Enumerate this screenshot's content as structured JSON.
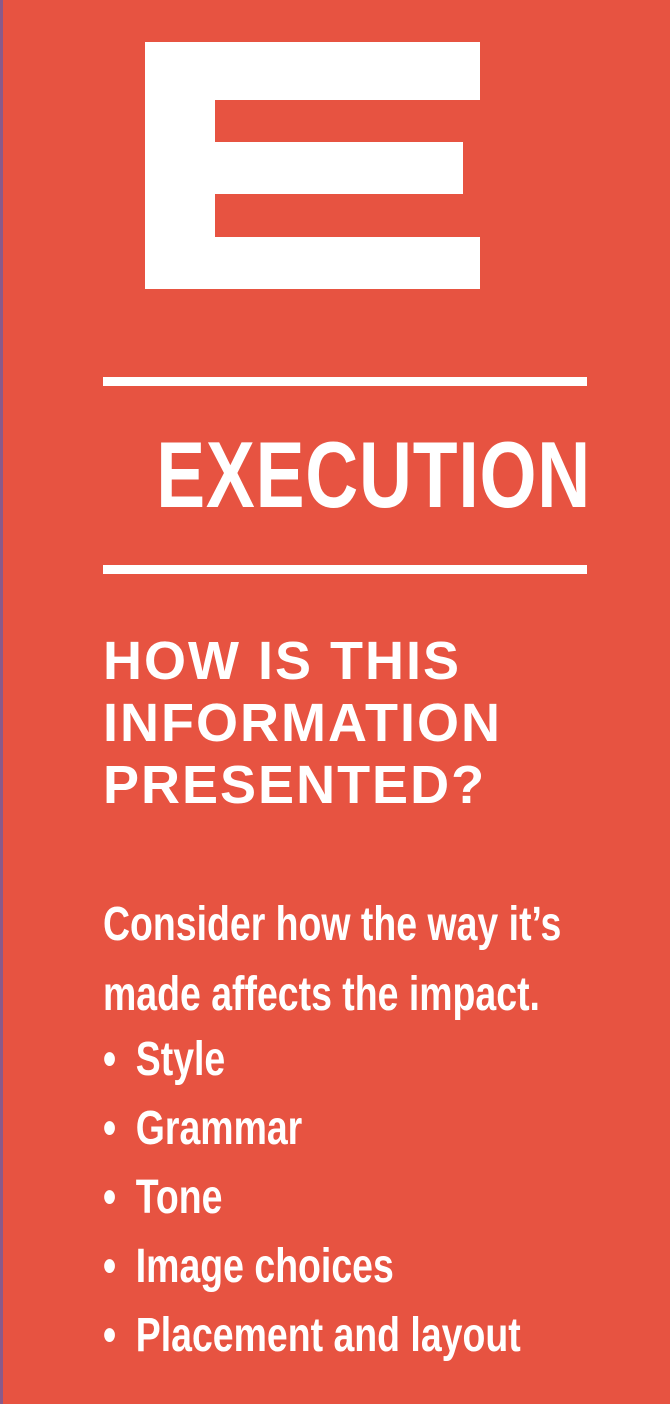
{
  "card": {
    "colors": {
      "background": "#e75341",
      "text": "#ffffff",
      "left_edge": "#8a5a8a"
    }
  },
  "letter": "E",
  "title": "EXECUTION",
  "question": {
    "lines": [
      "HOW IS THIS",
      "INFORMATION",
      "PRESENTED?"
    ]
  },
  "intro": {
    "lines": [
      "Consider how the way it’s",
      "made affects the impact."
    ]
  },
  "bullet_symbol": "•",
  "bullets": [
    "Style",
    "Grammar",
    "Tone",
    "Image choices",
    "Placement and layout"
  ]
}
